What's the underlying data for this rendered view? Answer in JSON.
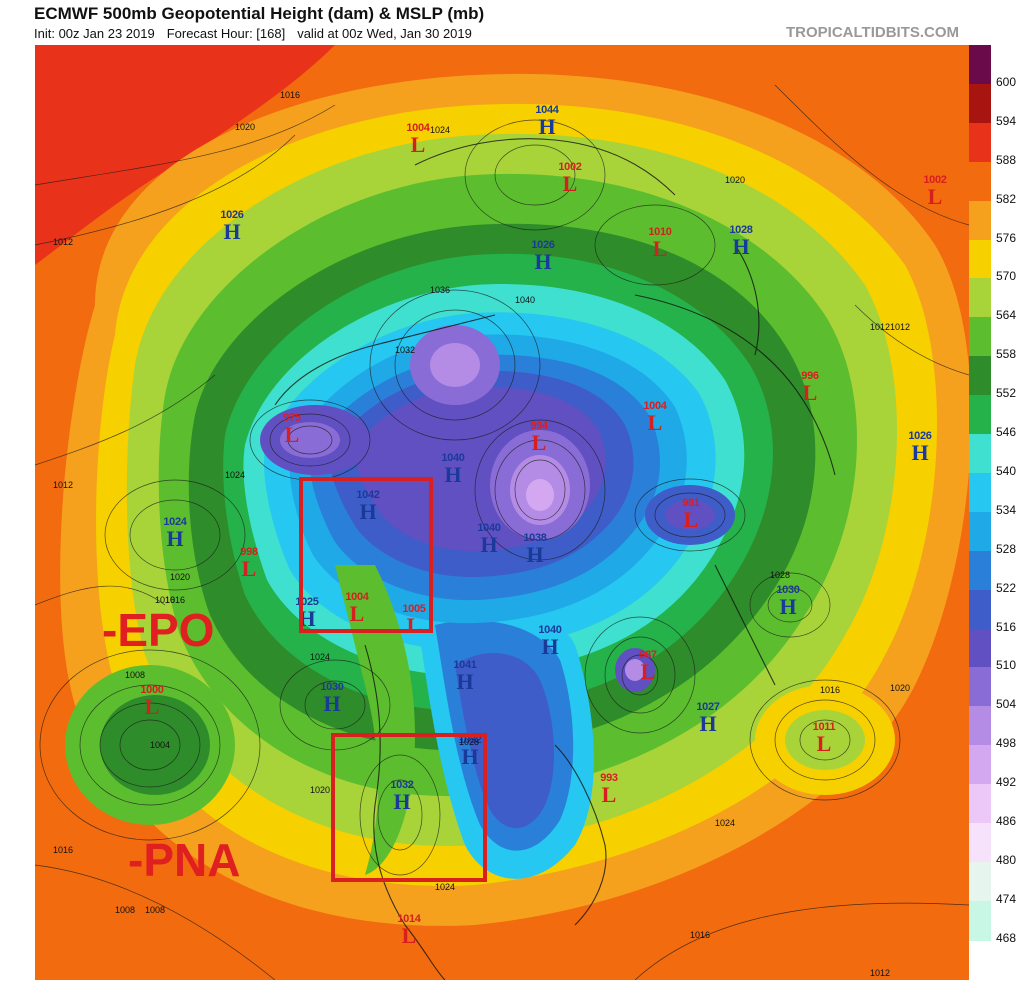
{
  "header": {
    "title": "ECMWF 500mb Geopotential Height (dam) & MSLP (mb)",
    "init": "Init: 00z Jan 23 2019",
    "forecast": "Forecast Hour: [168]",
    "valid": "valid at 00z Wed, Jan 30 2019",
    "source": "TROPICALTIDBITS.COM"
  },
  "colorbar": {
    "levels": [
      "600",
      "594",
      "588",
      "582",
      "576",
      "570",
      "564",
      "558",
      "552",
      "546",
      "540",
      "534",
      "528",
      "522",
      "516",
      "510",
      "504",
      "498",
      "492",
      "486",
      "480",
      "474",
      "468"
    ],
    "colors": [
      "#6b0a4a",
      "#a8140f",
      "#e8331a",
      "#f26b0e",
      "#f5a11e",
      "#f7d000",
      "#a8d43a",
      "#5cbe2e",
      "#2f8c2a",
      "#25b24a",
      "#3fe0cf",
      "#26c7f0",
      "#1fa9e6",
      "#2a7fd8",
      "#3e5dc8",
      "#6150c2",
      "#8a6cd6",
      "#b48ce6",
      "#d4a8f0",
      "#ecc8f8",
      "#f6e2fb",
      "#e6f6ef",
      "#c8f7e6"
    ]
  },
  "highs": [
    {
      "value": "1026",
      "sym": "H"
    },
    {
      "value": "1044",
      "sym": "H"
    },
    {
      "value": "1024",
      "sym": "H"
    },
    {
      "value": "1042",
      "sym": "H"
    },
    {
      "value": "1040",
      "sym": "H"
    },
    {
      "value": "1040",
      "sym": "H"
    },
    {
      "value": "1025",
      "sym": "H"
    },
    {
      "value": "1030",
      "sym": "H"
    },
    {
      "value": "1027",
      "sym": "H"
    },
    {
      "value": "1030",
      "sym": "H"
    },
    {
      "value": "1026",
      "sym": "H"
    },
    {
      "value": "1028",
      "sym": "H"
    },
    {
      "value": "1026",
      "sym": "H"
    },
    {
      "value": "1032",
      "sym": "H"
    },
    {
      "value": "1038",
      "sym": "H"
    },
    {
      "value": "1040",
      "sym": "H"
    },
    {
      "value": "1041",
      "sym": "H"
    },
    {
      "value": "1032",
      "sym": "H"
    }
  ],
  "lows": [
    {
      "value": "1004",
      "sym": "L"
    },
    {
      "value": "1002",
      "sym": "L"
    },
    {
      "value": "1010",
      "sym": "L"
    },
    {
      "value": "975",
      "sym": "L"
    },
    {
      "value": "994",
      "sym": "L"
    },
    {
      "value": "1004",
      "sym": "L"
    },
    {
      "value": "996",
      "sym": "L"
    },
    {
      "value": "981",
      "sym": "L"
    },
    {
      "value": "998",
      "sym": "L"
    },
    {
      "value": "1004",
      "sym": "L"
    },
    {
      "value": "1005",
      "sym": "L"
    },
    {
      "value": "987",
      "sym": "L"
    },
    {
      "value": "1000",
      "sym": "L"
    },
    {
      "value": "1011",
      "sym": "L"
    },
    {
      "value": "993",
      "sym": "L"
    },
    {
      "value": "1014",
      "sym": "L"
    },
    {
      "value": "1002",
      "sym": "L"
    }
  ],
  "isobar_labels": [
    "1012",
    "1016",
    "1020",
    "1024",
    "1008",
    "1004",
    "1012",
    "1016",
    "1020",
    "1024",
    "1028",
    "1032",
    "1036",
    "1040",
    "1008",
    "1012",
    "1016",
    "1020",
    "1024",
    "1012",
    "1016",
    "1008",
    "1012",
    "1016",
    "1024",
    "1020",
    "1024",
    "1028",
    "1016",
    "1020"
  ],
  "annotations": {
    "epo": "-EPO",
    "pna": "-PNA",
    "accent_color": "#e02020"
  }
}
